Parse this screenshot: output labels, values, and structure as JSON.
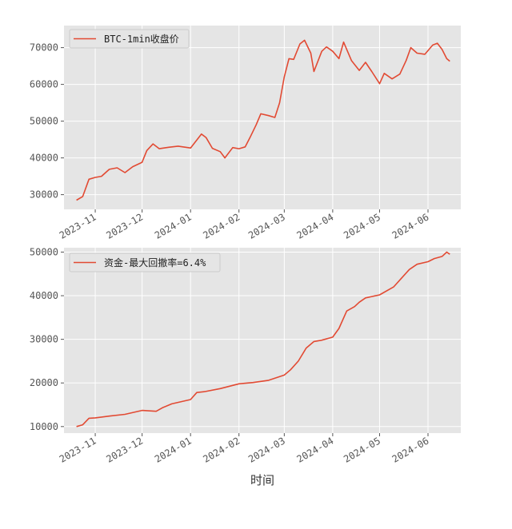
{
  "chart_data": [
    {
      "type": "line",
      "xlabel": "",
      "ylabel": "",
      "x_ticks": [
        "2023-11",
        "2023-12",
        "2024-01",
        "2024-02",
        "2024-03",
        "2024-04",
        "2024-05",
        "2024-06"
      ],
      "y_ticks": [
        30000,
        40000,
        50000,
        60000,
        70000
      ],
      "ylim": [
        26000,
        76000
      ],
      "xlim": [
        "2023-10-12",
        "2024-06-22"
      ],
      "grid": true,
      "legend_position": "top-left",
      "series": [
        {
          "name": "BTC-1min收盘价",
          "color": "#E24A33",
          "x": [
            "2023-10-20",
            "2023-10-24",
            "2023-10-28",
            "2023-11-01",
            "2023-11-05",
            "2023-11-10",
            "2023-11-15",
            "2023-11-20",
            "2023-11-25",
            "2023-12-01",
            "2023-12-04",
            "2023-12-08",
            "2023-12-12",
            "2023-12-18",
            "2023-12-24",
            "2024-01-01",
            "2024-01-08",
            "2024-01-11",
            "2024-01-15",
            "2024-01-20",
            "2024-01-23",
            "2024-01-28",
            "2024-02-01",
            "2024-02-05",
            "2024-02-08",
            "2024-02-12",
            "2024-02-15",
            "2024-02-20",
            "2024-02-24",
            "2024-02-27",
            "2024-03-01",
            "2024-03-04",
            "2024-03-07",
            "2024-03-11",
            "2024-03-14",
            "2024-03-18",
            "2024-03-20",
            "2024-03-25",
            "2024-03-28",
            "2024-04-01",
            "2024-04-05",
            "2024-04-08",
            "2024-04-13",
            "2024-04-18",
            "2024-04-22",
            "2024-04-26",
            "2024-05-01",
            "2024-05-04",
            "2024-05-09",
            "2024-05-14",
            "2024-05-18",
            "2024-05-21",
            "2024-05-25",
            "2024-05-30",
            "2024-06-04",
            "2024-06-07",
            "2024-06-10",
            "2024-06-13",
            "2024-06-15"
          ],
          "values": [
            28500,
            29500,
            34200,
            34700,
            35000,
            36900,
            37300,
            36000,
            37600,
            38800,
            42000,
            43800,
            42500,
            42900,
            43200,
            42700,
            46500,
            45500,
            42600,
            41700,
            40000,
            42800,
            42500,
            43000,
            45500,
            49000,
            52000,
            51500,
            51000,
            55000,
            62000,
            67000,
            66800,
            71000,
            72000,
            68500,
            63500,
            69000,
            70200,
            69000,
            67000,
            71500,
            66500,
            63800,
            66000,
            63500,
            60200,
            63000,
            61500,
            62800,
            66500,
            70000,
            68500,
            68200,
            70700,
            71200,
            69500,
            67000,
            66300
          ]
        }
      ]
    },
    {
      "type": "line",
      "xlabel": "时间",
      "ylabel": "",
      "x_ticks": [
        "2023-11",
        "2023-12",
        "2024-01",
        "2024-02",
        "2024-03",
        "2024-04",
        "2024-05",
        "2024-06"
      ],
      "y_ticks": [
        10000,
        20000,
        30000,
        40000,
        50000
      ],
      "ylim": [
        8500,
        51000
      ],
      "xlim": [
        "2023-10-12",
        "2024-06-22"
      ],
      "grid": true,
      "legend_position": "top-left",
      "series": [
        {
          "name": "资金-最大回撤率=6.4%",
          "color": "#E24A33",
          "x": [
            "2023-10-20",
            "2023-10-24",
            "2023-10-28",
            "2023-11-01",
            "2023-11-10",
            "2023-11-20",
            "2023-12-01",
            "2023-12-10",
            "2023-12-14",
            "2023-12-20",
            "2024-01-01",
            "2024-01-05",
            "2024-01-10",
            "2024-01-20",
            "2024-02-01",
            "2024-02-10",
            "2024-02-20",
            "2024-03-01",
            "2024-03-05",
            "2024-03-10",
            "2024-03-15",
            "2024-03-20",
            "2024-03-25",
            "2024-04-01",
            "2024-04-05",
            "2024-04-10",
            "2024-04-15",
            "2024-04-18",
            "2024-04-22",
            "2024-05-01",
            "2024-05-10",
            "2024-05-15",
            "2024-05-20",
            "2024-05-25",
            "2024-06-01",
            "2024-06-05",
            "2024-06-10",
            "2024-06-13",
            "2024-06-15"
          ],
          "values": [
            10000,
            10400,
            11900,
            12000,
            12400,
            12800,
            13700,
            13500,
            14300,
            15200,
            16200,
            17800,
            18000,
            18700,
            19800,
            20100,
            20600,
            21800,
            23000,
            25000,
            28000,
            29500,
            29800,
            30500,
            32500,
            36500,
            37500,
            38500,
            39500,
            40200,
            42000,
            44000,
            46000,
            47200,
            47800,
            48500,
            49000,
            50000,
            49500
          ]
        }
      ]
    }
  ]
}
